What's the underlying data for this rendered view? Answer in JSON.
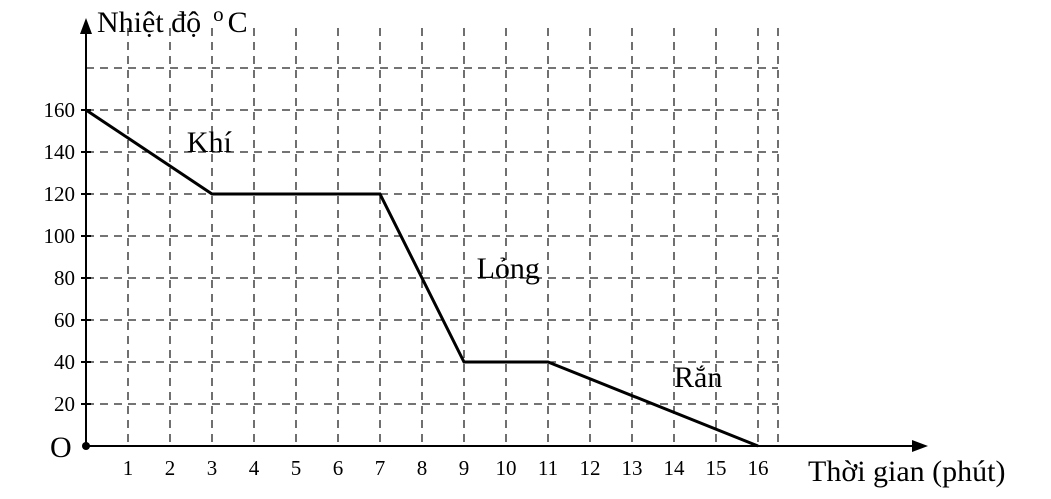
{
  "chart_data": {
    "type": "line",
    "ylabel": "Nhiệt độ",
    "yunit_prefix": "o",
    "yunit": "C",
    "xlabel": "Thời gian (phút)",
    "origin_label": "O",
    "x_ticks": [
      1,
      2,
      3,
      4,
      5,
      6,
      7,
      8,
      9,
      10,
      11,
      12,
      13,
      14,
      15,
      16
    ],
    "y_ticks": [
      20,
      40,
      60,
      80,
      100,
      120,
      140,
      160
    ],
    "xlim": [
      0,
      16
    ],
    "ylim": [
      0,
      180
    ],
    "grid": true,
    "series": [
      {
        "x": [
          0,
          3,
          7,
          9,
          11,
          16
        ],
        "y": [
          160,
          120,
          120,
          40,
          40,
          0
        ]
      }
    ],
    "annotations": [
      {
        "text": "Khí",
        "x": 2.4,
        "y": 140
      },
      {
        "text": "Lỏng",
        "x": 9.3,
        "y": 80
      },
      {
        "text": "Rắn",
        "x": 14.0,
        "y": 28
      }
    ]
  }
}
